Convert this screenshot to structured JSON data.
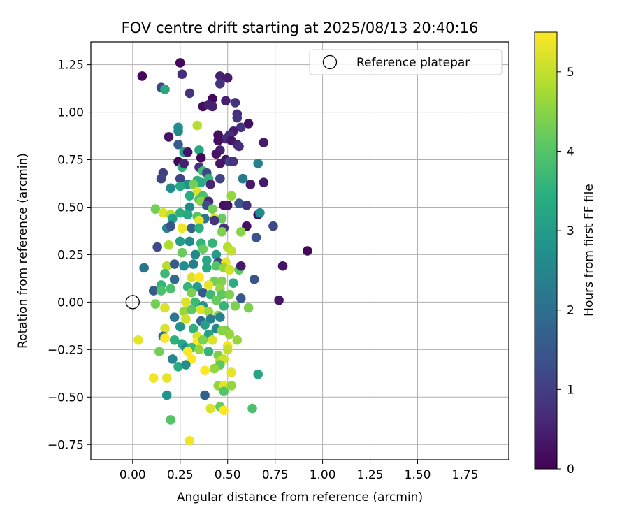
{
  "chart_data": {
    "type": "scatter",
    "title": "FOV centre drift starting at 2025/08/13 20:40:16",
    "xlabel": "Angular distance from reference (arcmin)",
    "ylabel": "Rotation from reference (arcmin)",
    "xlim": [
      -0.22,
      1.98
    ],
    "ylim": [
      -0.83,
      1.37
    ],
    "xticks": [
      "0.00",
      "0.25",
      "0.50",
      "0.75",
      "1.00",
      "1.25",
      "1.50",
      "1.75"
    ],
    "yticks": [
      "−0.75",
      "−0.50",
      "−0.25",
      "0.00",
      "0.25",
      "0.50",
      "0.75",
      "1.00",
      "1.25"
    ],
    "grid": true,
    "legend": {
      "position": "top-right",
      "entries": [
        "Reference platepar"
      ]
    },
    "reference_point": {
      "x": 0.0,
      "y": 0.0
    },
    "colorbar": {
      "label": "Hours from first FF file",
      "min": 0,
      "max": 5.5,
      "ticks": [
        "0",
        "1",
        "2",
        "3",
        "4",
        "5"
      ],
      "colormap": "viridis"
    },
    "points": [
      [
        0.25,
        1.26,
        0.1
      ],
      [
        0.05,
        1.19,
        0.1
      ],
      [
        0.46,
        1.19,
        0.5
      ],
      [
        0.5,
        1.18,
        0.4
      ],
      [
        0.26,
        1.2,
        0.7
      ],
      [
        0.15,
        1.13,
        1.1
      ],
      [
        0.17,
        1.12,
        3.3
      ],
      [
        0.46,
        1.15,
        0.8
      ],
      [
        0.3,
        1.1,
        0.8
      ],
      [
        0.42,
        1.07,
        0.1
      ],
      [
        0.49,
        1.06,
        0.5
      ],
      [
        0.54,
        1.05,
        0.8
      ],
      [
        0.37,
        1.03,
        0.2
      ],
      [
        0.4,
        1.04,
        0.5
      ],
      [
        0.42,
        1.03,
        0.5
      ],
      [
        0.55,
        0.99,
        0.7
      ],
      [
        0.55,
        0.97,
        0.8
      ],
      [
        0.61,
        0.94,
        0.2
      ],
      [
        0.57,
        0.92,
        0.8
      ],
      [
        0.34,
        0.93,
        4.9
      ],
      [
        0.24,
        0.92,
        2.7
      ],
      [
        0.24,
        0.9,
        2.6
      ],
      [
        0.53,
        0.9,
        0.4
      ],
      [
        0.45,
        0.88,
        0.2
      ],
      [
        0.51,
        0.88,
        0.7
      ],
      [
        0.19,
        0.87,
        0.3
      ],
      [
        0.49,
        0.86,
        0.7
      ],
      [
        0.45,
        0.85,
        0.2
      ],
      [
        0.52,
        0.85,
        0.3
      ],
      [
        0.69,
        0.84,
        0.4
      ],
      [
        0.55,
        0.83,
        0.5
      ],
      [
        0.24,
        0.83,
        1.6
      ],
      [
        0.56,
        0.82,
        0.7
      ],
      [
        0.46,
        0.8,
        0.5
      ],
      [
        0.35,
        0.8,
        3.3
      ],
      [
        0.27,
        0.79,
        3.0
      ],
      [
        0.29,
        0.79,
        0.3
      ],
      [
        0.44,
        0.78,
        0.3
      ],
      [
        0.49,
        0.75,
        0.3
      ],
      [
        0.36,
        0.76,
        0.1
      ],
      [
        0.24,
        0.74,
        0.1
      ],
      [
        0.51,
        0.74,
        1.1
      ],
      [
        0.53,
        0.74,
        0.8
      ],
      [
        0.66,
        0.73,
        2.4
      ],
      [
        0.26,
        0.71,
        3.5
      ],
      [
        0.35,
        0.71,
        0.8
      ],
      [
        0.37,
        0.69,
        3.8
      ],
      [
        0.16,
        0.68,
        1.0
      ],
      [
        0.46,
        0.73,
        0.3
      ],
      [
        0.27,
        0.73,
        0.5
      ],
      [
        0.39,
        0.68,
        1.2
      ],
      [
        0.15,
        0.65,
        1.1
      ],
      [
        0.25,
        0.65,
        1.1
      ],
      [
        0.4,
        0.65,
        3.6
      ],
      [
        0.58,
        0.65,
        2.3
      ],
      [
        0.46,
        0.65,
        1.1
      ],
      [
        0.34,
        0.64,
        3.5
      ],
      [
        0.36,
        0.63,
        3.4
      ],
      [
        0.29,
        0.62,
        2.8
      ],
      [
        0.32,
        0.62,
        4.3
      ],
      [
        0.25,
        0.61,
        3.3
      ],
      [
        0.41,
        0.62,
        0.6
      ],
      [
        0.62,
        0.62,
        0.4
      ],
      [
        0.69,
        0.63,
        0.4
      ],
      [
        0.2,
        0.6,
        2.6
      ],
      [
        0.34,
        0.58,
        5.2
      ],
      [
        0.52,
        0.56,
        4.6
      ],
      [
        0.37,
        0.56,
        3.9
      ],
      [
        0.3,
        0.56,
        3.4
      ],
      [
        0.35,
        0.54,
        3.9
      ],
      [
        0.36,
        0.53,
        4.5
      ],
      [
        0.4,
        0.53,
        0.6
      ],
      [
        0.39,
        0.51,
        1.3
      ],
      [
        0.48,
        0.51,
        0.2
      ],
      [
        0.5,
        0.51,
        0.3
      ],
      [
        0.56,
        0.52,
        1.5
      ],
      [
        0.6,
        0.51,
        0.8
      ],
      [
        0.12,
        0.49,
        4.3
      ],
      [
        0.3,
        0.5,
        2.6
      ],
      [
        0.42,
        0.49,
        4.3
      ],
      [
        0.25,
        0.47,
        3.5
      ],
      [
        0.16,
        0.47,
        5.2
      ],
      [
        0.2,
        0.46,
        4.9
      ],
      [
        0.29,
        0.46,
        3.3
      ],
      [
        0.34,
        0.45,
        4.0
      ],
      [
        0.21,
        0.44,
        3.1
      ],
      [
        0.38,
        0.44,
        2.1
      ],
      [
        0.43,
        0.44,
        5.2
      ],
      [
        0.47,
        0.44,
        4.2
      ],
      [
        0.35,
        0.43,
        5.3
      ],
      [
        0.43,
        0.43,
        0.8
      ],
      [
        0.66,
        0.46,
        0.3
      ],
      [
        0.67,
        0.47,
        2.6
      ],
      [
        0.18,
        0.39,
        2.5
      ],
      [
        0.2,
        0.4,
        1.4
      ],
      [
        0.26,
        0.39,
        5.4
      ],
      [
        0.31,
        0.39,
        1.7
      ],
      [
        0.35,
        0.39,
        3.5
      ],
      [
        0.48,
        0.39,
        0.8
      ],
      [
        0.74,
        0.4,
        1.2
      ],
      [
        0.6,
        0.4,
        0.2
      ],
      [
        0.47,
        0.37,
        4.4
      ],
      [
        0.57,
        0.37,
        4.5
      ],
      [
        0.65,
        0.34,
        1.4
      ],
      [
        0.13,
        0.29,
        1.2
      ],
      [
        0.19,
        0.3,
        4.8
      ],
      [
        0.25,
        0.32,
        3.0
      ],
      [
        0.3,
        0.32,
        2.6
      ],
      [
        0.36,
        0.31,
        3.6
      ],
      [
        0.42,
        0.31,
        3.6
      ],
      [
        0.5,
        0.29,
        4.9
      ],
      [
        0.52,
        0.27,
        5.0
      ],
      [
        0.92,
        0.27,
        0.1
      ],
      [
        0.26,
        0.26,
        4.2
      ],
      [
        0.33,
        0.25,
        2.6
      ],
      [
        0.37,
        0.28,
        4.2
      ],
      [
        0.44,
        0.25,
        3.0
      ],
      [
        0.39,
        0.22,
        3.3
      ],
      [
        0.45,
        0.21,
        1.2
      ],
      [
        0.49,
        0.21,
        5.3
      ],
      [
        0.06,
        0.18,
        2.1
      ],
      [
        0.18,
        0.19,
        4.9
      ],
      [
        0.22,
        0.2,
        1.6
      ],
      [
        0.27,
        0.19,
        2.7
      ],
      [
        0.32,
        0.2,
        2.3
      ],
      [
        0.39,
        0.18,
        3.3
      ],
      [
        0.44,
        0.19,
        4.0
      ],
      [
        0.48,
        0.18,
        4.6
      ],
      [
        0.51,
        0.17,
        5.1
      ],
      [
        0.56,
        0.17,
        4.1
      ],
      [
        0.57,
        0.19,
        0.4
      ],
      [
        0.79,
        0.19,
        0.3
      ],
      [
        0.17,
        0.15,
        3.7
      ],
      [
        0.22,
        0.12,
        1.9
      ],
      [
        0.31,
        0.13,
        5.2
      ],
      [
        0.35,
        0.13,
        5.5
      ],
      [
        0.43,
        0.11,
        4.3
      ],
      [
        0.47,
        0.11,
        4.4
      ],
      [
        0.53,
        0.1,
        3.4
      ],
      [
        0.64,
        0.12,
        1.4
      ],
      [
        0.15,
        0.09,
        3.6
      ],
      [
        0.29,
        0.08,
        3.6
      ],
      [
        0.34,
        0.08,
        3.0
      ],
      [
        0.4,
        0.09,
        5.3
      ],
      [
        0.46,
        0.07,
        4.6
      ],
      [
        0.11,
        0.06,
        1.6
      ],
      [
        0.15,
        0.06,
        3.9
      ],
      [
        0.2,
        0.07,
        3.9
      ],
      [
        0.31,
        0.05,
        4.4
      ],
      [
        0.37,
        0.05,
        1.5
      ],
      [
        0.41,
        0.04,
        3.7
      ],
      [
        0.47,
        0.04,
        4.1
      ],
      [
        0.51,
        0.04,
        4.4
      ],
      [
        0.57,
        0.02,
        1.5
      ],
      [
        0.77,
        0.01,
        0.3
      ],
      [
        0.12,
        -0.01,
        4.3
      ],
      [
        0.17,
        -0.03,
        5.2
      ],
      [
        0.28,
        0.0,
        5.2
      ],
      [
        0.33,
        0.0,
        3.7
      ],
      [
        0.37,
        -0.02,
        2.8
      ],
      [
        0.44,
        0.01,
        4.2
      ],
      [
        0.48,
        -0.02,
        3.6
      ],
      [
        0.54,
        -0.02,
        4.4
      ],
      [
        0.61,
        -0.03,
        4.4
      ],
      [
        0.27,
        -0.05,
        4.6
      ],
      [
        0.31,
        -0.04,
        4.1
      ],
      [
        0.36,
        -0.04,
        5.2
      ],
      [
        0.4,
        -0.05,
        4.7
      ],
      [
        0.45,
        -0.07,
        4.5
      ],
      [
        0.22,
        -0.08,
        2.2
      ],
      [
        0.28,
        -0.09,
        5.1
      ],
      [
        0.36,
        -0.1,
        1.8
      ],
      [
        0.41,
        -0.09,
        2.4
      ],
      [
        0.46,
        -0.08,
        2.4
      ],
      [
        0.25,
        -0.13,
        2.8
      ],
      [
        0.32,
        -0.14,
        3.5
      ],
      [
        0.38,
        -0.12,
        3.1
      ],
      [
        0.44,
        -0.14,
        2.5
      ],
      [
        0.49,
        -0.15,
        4.4
      ],
      [
        0.51,
        -0.17,
        4.6
      ],
      [
        0.17,
        -0.14,
        5.2
      ],
      [
        0.16,
        -0.18,
        2.1
      ],
      [
        0.34,
        -0.18,
        5.2
      ],
      [
        0.4,
        -0.17,
        3.1
      ],
      [
        0.47,
        -0.15,
        4.5
      ],
      [
        0.03,
        -0.2,
        5.3
      ],
      [
        0.17,
        -0.19,
        5.5
      ],
      [
        0.22,
        -0.2,
        3.5
      ],
      [
        0.26,
        -0.22,
        3.3
      ],
      [
        0.34,
        -0.21,
        5.5
      ],
      [
        0.37,
        -0.2,
        4.4
      ],
      [
        0.42,
        -0.2,
        5.2
      ],
      [
        0.5,
        -0.23,
        5.4
      ],
      [
        0.55,
        -0.2,
        4.6
      ],
      [
        0.14,
        -0.26,
        4.3
      ],
      [
        0.28,
        -0.24,
        2.7
      ],
      [
        0.31,
        -0.24,
        3.7
      ],
      [
        0.35,
        -0.25,
        4.6
      ],
      [
        0.4,
        -0.26,
        3.6
      ],
      [
        0.45,
        -0.28,
        4.4
      ],
      [
        0.29,
        -0.26,
        5.5
      ],
      [
        0.5,
        -0.25,
        5.0
      ],
      [
        0.21,
        -0.3,
        2.5
      ],
      [
        0.31,
        -0.3,
        5.5
      ],
      [
        0.46,
        -0.31,
        4.8
      ],
      [
        0.48,
        -0.3,
        5.1
      ],
      [
        0.24,
        -0.34,
        3.4
      ],
      [
        0.28,
        -0.33,
        2.7
      ],
      [
        0.46,
        -0.33,
        4.1
      ],
      [
        0.38,
        -0.36,
        5.5
      ],
      [
        0.43,
        -0.35,
        4.6
      ],
      [
        0.52,
        -0.37,
        5.3
      ],
      [
        0.66,
        -0.38,
        3.2
      ],
      [
        0.11,
        -0.4,
        5.4
      ],
      [
        0.18,
        -0.4,
        5.3
      ],
      [
        0.45,
        -0.44,
        4.6
      ],
      [
        0.48,
        -0.44,
        5.3
      ],
      [
        0.52,
        -0.44,
        4.6
      ],
      [
        0.38,
        -0.49,
        1.7
      ],
      [
        0.48,
        -0.47,
        4.0
      ],
      [
        0.18,
        -0.49,
        2.8
      ],
      [
        0.41,
        -0.56,
        5.2
      ],
      [
        0.46,
        -0.55,
        4.2
      ],
      [
        0.48,
        -0.57,
        5.5
      ],
      [
        0.63,
        -0.56,
        3.9
      ],
      [
        0.2,
        -0.62,
        4.0
      ],
      [
        0.3,
        -0.73,
        5.4
      ]
    ]
  }
}
